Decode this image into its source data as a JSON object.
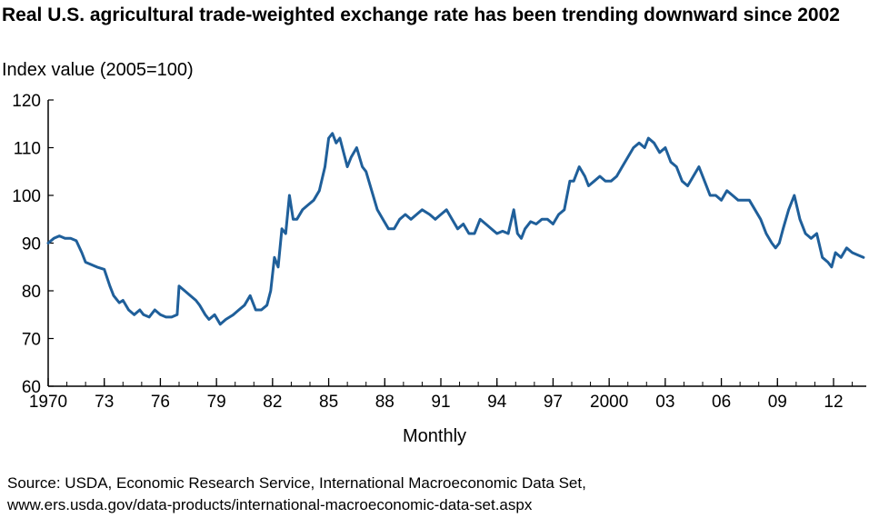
{
  "title": "Real U.S. agricultural trade-weighted exchange rate has been trending downward since 2002",
  "ylabel": "Index value (2005=100)",
  "xlabel": "Monthly",
  "source_lines": [
    "Source:  USDA, Economic Research Service, International Macroeconomic Data Set,",
    "www.ers.usda.gov/data-products/international-macroeconomic-data-set.aspx"
  ],
  "colors": {
    "line": "#1f5f9a",
    "axis": "#000000"
  },
  "chart_data": {
    "type": "line",
    "title": "Real U.S. agricultural trade-weighted exchange rate has been trending downward since 2002",
    "xlabel": "Monthly",
    "ylabel": "Index value (2005=100)",
    "ylim": [
      60,
      120
    ],
    "xlim": [
      1970,
      2013.75
    ],
    "grid": false,
    "y_ticks": [
      60,
      70,
      80,
      90,
      100,
      110,
      120
    ],
    "x_ticks": [
      {
        "value": 1970,
        "label": "1970"
      },
      {
        "value": 1973,
        "label": "73"
      },
      {
        "value": 1976,
        "label": "76"
      },
      {
        "value": 1979,
        "label": "79"
      },
      {
        "value": 1982,
        "label": "82"
      },
      {
        "value": 1985,
        "label": "85"
      },
      {
        "value": 1988,
        "label": "88"
      },
      {
        "value": 1991,
        "label": "91"
      },
      {
        "value": 1994,
        "label": "94"
      },
      {
        "value": 1997,
        "label": "97"
      },
      {
        "value": 2000,
        "label": "2000"
      },
      {
        "value": 2003,
        "label": "03"
      },
      {
        "value": 2006,
        "label": "06"
      },
      {
        "value": 2009,
        "label": "09"
      },
      {
        "value": 2012,
        "label": "12"
      }
    ],
    "series": [
      {
        "x": [
          1970.0,
          1970.3,
          1970.6,
          1970.9,
          1971.2,
          1971.5,
          1971.8,
          1972.0,
          1972.3,
          1972.6,
          1973.0,
          1973.3,
          1973.5,
          1973.8,
          1974.0,
          1974.3,
          1974.6,
          1974.9,
          1975.1,
          1975.4,
          1975.7,
          1976.0,
          1976.3,
          1976.6,
          1976.9,
          1977.0,
          1977.3,
          1977.6,
          1977.9,
          1978.1,
          1978.4,
          1978.6,
          1978.9,
          1979.2,
          1979.5,
          1979.9,
          1980.2,
          1980.5,
          1980.8,
          1981.1,
          1981.4,
          1981.7,
          1981.9,
          1982.1,
          1982.3,
          1982.5,
          1982.7,
          1982.9,
          1983.1,
          1983.3,
          1983.6,
          1983.9,
          1984.2,
          1984.5,
          1984.8,
          1985.0,
          1985.2,
          1985.4,
          1985.6,
          1985.8,
          1986.0,
          1986.2,
          1986.5,
          1986.8,
          1987.0,
          1987.3,
          1987.6,
          1987.9,
          1988.2,
          1988.5,
          1988.8,
          1989.1,
          1989.4,
          1989.7,
          1990.0,
          1990.4,
          1990.7,
          1991.0,
          1991.3,
          1991.6,
          1991.9,
          1992.2,
          1992.5,
          1992.8,
          1993.1,
          1993.4,
          1993.7,
          1994.0,
          1994.3,
          1994.6,
          1994.9,
          1995.1,
          1995.3,
          1995.5,
          1995.8,
          1996.1,
          1996.4,
          1996.7,
          1997.0,
          1997.3,
          1997.6,
          1997.9,
          1998.1,
          1998.4,
          1998.7,
          1998.9,
          1999.2,
          1999.5,
          1999.8,
          2000.1,
          2000.4,
          2000.7,
          2001.0,
          2001.3,
          2001.6,
          2001.9,
          2002.1,
          2002.4,
          2002.7,
          2003.0,
          2003.3,
          2003.6,
          2003.9,
          2004.2,
          2004.5,
          2004.8,
          2005.1,
          2005.4,
          2005.7,
          2006.0,
          2006.3,
          2006.6,
          2006.9,
          2007.2,
          2007.5,
          2007.8,
          2008.1,
          2008.4,
          2008.7,
          2008.9,
          2009.1,
          2009.3,
          2009.6,
          2009.9,
          2010.2,
          2010.5,
          2010.8,
          2011.1,
          2011.4,
          2011.7,
          2011.9,
          2012.1,
          2012.4,
          2012.7,
          2013.0,
          2013.3,
          2013.6
        ],
        "values": [
          90,
          91,
          91.5,
          91,
          91,
          90.5,
          88,
          86,
          85.5,
          85,
          84.5,
          81,
          79,
          77.5,
          78,
          76,
          75,
          76,
          75,
          74.5,
          76,
          75,
          74.5,
          74.5,
          75,
          81,
          80,
          79,
          78,
          77,
          75,
          74,
          75,
          73,
          74,
          75,
          76,
          77,
          79,
          76,
          76,
          77,
          80,
          87,
          85,
          93,
          92,
          100,
          95,
          95,
          97,
          98,
          99,
          101,
          106,
          112,
          113,
          111,
          112,
          109,
          106,
          108,
          110,
          106,
          105,
          101,
          97,
          95,
          93,
          93,
          95,
          96,
          95,
          96,
          97,
          96,
          95,
          96,
          97,
          95,
          93,
          94,
          92,
          92,
          95,
          94,
          93,
          92,
          92.5,
          92,
          97,
          92,
          91,
          93,
          94.5,
          94,
          95,
          95,
          94,
          96,
          97,
          103,
          103,
          106,
          104,
          102,
          103,
          104,
          103,
          103,
          104,
          106,
          108,
          110,
          111,
          110,
          112,
          111,
          109,
          110,
          107,
          106,
          103,
          102,
          104,
          106,
          103,
          100,
          100,
          99,
          101,
          100,
          99,
          99,
          99,
          97,
          95,
          92,
          90,
          89,
          90,
          93,
          97,
          100,
          95,
          92,
          91,
          92,
          87,
          86,
          85,
          88,
          87,
          89,
          88,
          87.5,
          87
        ]
      }
    ]
  }
}
